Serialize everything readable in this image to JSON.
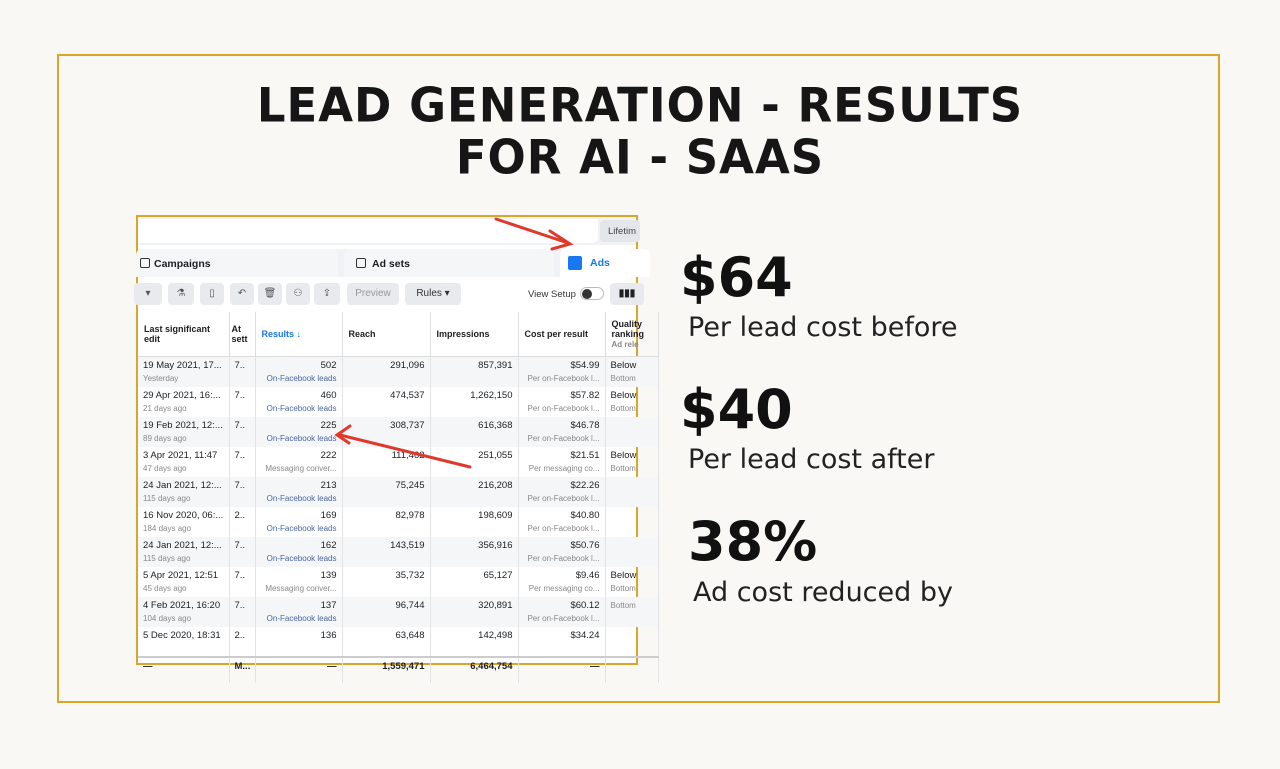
{
  "title": {
    "line1": "LEAD GENERATION - RESULTS",
    "line2": "FOR AI - SAAS"
  },
  "screenshot": {
    "date_range": "Lifetim",
    "tabs": [
      "Campaigns",
      "Ad sets",
      "Ads"
    ],
    "toolbar": {
      "preview": "Preview",
      "rules": "Rules ▾",
      "view_setup": "View Setup"
    },
    "columns": [
      "Last significant edit",
      "At sett",
      "Results ↓",
      "Reach",
      "Impressions",
      "Cost per result",
      "Quality ranking"
    ],
    "quality_sub": "Ad rele",
    "rows": [
      {
        "date": "19 May 2021, 17...",
        "ago": "Yesterday",
        "at": "7..",
        "results": "502",
        "rtype": "On-Facebook leads",
        "reach": "291,096",
        "impr": "857,391",
        "cost": "$54.99",
        "ctype": "Per on-Facebook l...",
        "q": "Below",
        "qs": "Bottom"
      },
      {
        "date": "29 Apr 2021, 16:...",
        "ago": "21 days ago",
        "at": "7..",
        "results": "460",
        "rtype": "On-Facebook leads",
        "reach": "474,537",
        "impr": "1,262,150",
        "cost": "$57.82",
        "ctype": "Per on-Facebook l...",
        "q": "Below",
        "qs": "Bottom"
      },
      {
        "date": "19 Feb 2021, 12:...",
        "ago": "89 days ago",
        "at": "7..",
        "results": "225",
        "rtype": "On-Facebook leads",
        "reach": "308,737",
        "impr": "616,368",
        "cost": "$46.78",
        "ctype": "Per on-Facebook l...",
        "q": "",
        "qs": ""
      },
      {
        "date": "3 Apr 2021, 11:47",
        "ago": "47 days ago",
        "at": "7..",
        "results": "222",
        "rtype": "Messaging conver...",
        "reach": "111,462",
        "impr": "251,055",
        "cost": "$21.51",
        "ctype": "Per messaging co...",
        "q": "Below",
        "qs": "Bottom"
      },
      {
        "date": "24 Jan 2021, 12:...",
        "ago": "115 days ago",
        "at": "7..",
        "results": "213",
        "rtype": "On-Facebook leads",
        "reach": "75,245",
        "impr": "216,208",
        "cost": "$22.26",
        "ctype": "Per on-Facebook l...",
        "q": "",
        "qs": ""
      },
      {
        "date": "16 Nov 2020, 06:...",
        "ago": "184 days ago",
        "at": "2..",
        "results": "169",
        "rtype": "On-Facebook leads",
        "reach": "82,978",
        "impr": "198,609",
        "cost": "$40.80",
        "ctype": "Per on-Facebook l...",
        "q": "",
        "qs": ""
      },
      {
        "date": "24 Jan 2021, 12:...",
        "ago": "115 days ago",
        "at": "7..",
        "results": "162",
        "rtype": "On-Facebook leads",
        "reach": "143,519",
        "impr": "356,916",
        "cost": "$50.76",
        "ctype": "Per on-Facebook l...",
        "q": "",
        "qs": ""
      },
      {
        "date": "5 Apr 2021, 12:51",
        "ago": "45 days ago",
        "at": "7..",
        "results": "139",
        "rtype": "Messaging conver...",
        "reach": "35,732",
        "impr": "65,127",
        "cost": "$9.46",
        "ctype": "Per messaging co...",
        "q": "Below",
        "qs": "Bottom"
      },
      {
        "date": "4 Feb 2021, 16:20",
        "ago": "104 days ago",
        "at": "7..",
        "results": "137",
        "rtype": "On-Facebook leads",
        "reach": "96,744",
        "impr": "320,891",
        "cost": "$60.12",
        "ctype": "Per on-Facebook l...",
        "q": "",
        "qs": "Bottom"
      },
      {
        "date": "5 Dec 2020, 18:31",
        "ago": "",
        "at": "2..",
        "results": "136",
        "rtype": "",
        "reach": "63,648",
        "impr": "142,498",
        "cost": "$34.24",
        "ctype": "",
        "q": "",
        "qs": ""
      }
    ],
    "total": {
      "date": "—",
      "at": "M...",
      "results": "—",
      "reach": "1,559,471",
      "impr": "6,464,754",
      "cost": "—",
      "q": ""
    }
  },
  "stats": [
    {
      "value": "$64",
      "label": "Per lead cost before"
    },
    {
      "value": "$40",
      "label": "Per lead cost after"
    },
    {
      "value": "38%",
      "label": "Ad cost reduced by"
    }
  ],
  "colors": {
    "border": "#d9a62c",
    "accent": "#1877f2",
    "arrow": "#e0392b"
  }
}
